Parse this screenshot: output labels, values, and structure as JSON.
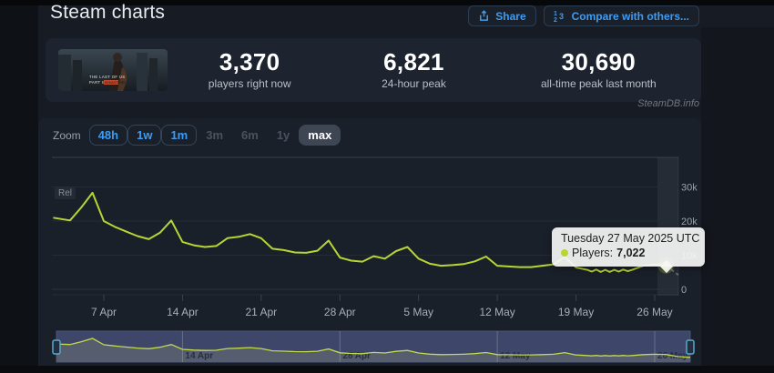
{
  "header": {
    "title": "Steam charts",
    "share_label": "Share",
    "compare_label": "Compare with others..."
  },
  "capsule": {
    "line1": "THE LAST OF US",
    "line2": "PART II",
    "badge": "REMASTERED"
  },
  "stats": {
    "items": [
      {
        "value": "3,370",
        "label": "players right now"
      },
      {
        "value": "6,821",
        "label": "24-hour peak"
      },
      {
        "value": "30,690",
        "label": "all-time peak last month"
      }
    ]
  },
  "watermark": "SteamDB.info",
  "toolbar": {
    "zoom_label": "Zoom",
    "buttons": [
      {
        "label": "48h",
        "state": "active"
      },
      {
        "label": "1w",
        "state": "active"
      },
      {
        "label": "1m",
        "state": "active"
      },
      {
        "label": "3m",
        "state": "disabled"
      },
      {
        "label": "6m",
        "state": "disabled"
      },
      {
        "label": "1y",
        "state": "disabled"
      },
      {
        "label": "max",
        "state": "selected"
      }
    ]
  },
  "release_flag": "Rel",
  "tooltip": {
    "title": "Tuesday 27 May 2025 UTC",
    "series_label": "Players:",
    "value": "7,022"
  },
  "chart_data": {
    "type": "line",
    "series_name": "Players",
    "day_zero": "3 Apr 2025",
    "points": [
      [
        -0.5,
        21000
      ],
      [
        1,
        20200
      ],
      [
        2,
        24000
      ],
      [
        3,
        28300
      ],
      [
        4,
        20000
      ],
      [
        5,
        18300
      ],
      [
        6,
        16900
      ],
      [
        7,
        15600
      ],
      [
        8,
        14700
      ],
      [
        9,
        16600
      ],
      [
        10,
        20200
      ],
      [
        11,
        13900
      ],
      [
        12,
        12900
      ],
      [
        13,
        12400
      ],
      [
        14,
        12700
      ],
      [
        15,
        15000
      ],
      [
        16,
        15400
      ],
      [
        17,
        16200
      ],
      [
        18,
        15000
      ],
      [
        19,
        11900
      ],
      [
        20,
        11500
      ],
      [
        21,
        10800
      ],
      [
        22,
        10700
      ],
      [
        23,
        11300
      ],
      [
        24,
        14300
      ],
      [
        25,
        9300
      ],
      [
        26,
        8400
      ],
      [
        27,
        8100
      ],
      [
        28,
        9700
      ],
      [
        29,
        9000
      ],
      [
        30,
        11200
      ],
      [
        31,
        12400
      ],
      [
        32,
        9000
      ],
      [
        33,
        7500
      ],
      [
        34,
        6900
      ],
      [
        35,
        7100
      ],
      [
        36,
        7400
      ],
      [
        37,
        8200
      ],
      [
        38,
        9600
      ],
      [
        39,
        6900
      ],
      [
        40,
        6700
      ],
      [
        41,
        6500
      ],
      [
        42,
        6500
      ],
      [
        43,
        6900
      ],
      [
        44,
        7300
      ],
      [
        45,
        9500
      ],
      [
        46,
        6400
      ],
      [
        47,
        5700
      ],
      [
        47.4,
        5200
      ],
      [
        47.8,
        5800
      ],
      [
        48.2,
        5100
      ],
      [
        48.6,
        5700
      ],
      [
        49,
        5100
      ],
      [
        49.4,
        5700
      ],
      [
        49.8,
        5200
      ],
      [
        50.2,
        5800
      ],
      [
        50.6,
        5300
      ],
      [
        51,
        5700
      ],
      [
        52,
        6900
      ],
      [
        53,
        7300
      ],
      [
        54,
        7022
      ],
      [
        55.1,
        4200
      ]
    ],
    "partial_last_segment": true,
    "selected_point": {
      "date": "Tuesday 27 May 2025 UTC",
      "players": 7022,
      "day": 54
    },
    "x_ticks": {
      "days": [
        4,
        11,
        18,
        25,
        32,
        39,
        46,
        53
      ],
      "labels": [
        "7 Apr",
        "14 Apr",
        "21 Apr",
        "28 Apr",
        "5 May",
        "12 May",
        "19 May",
        "26 May"
      ]
    },
    "y_ticks": [
      {
        "v": 0,
        "label": "0"
      },
      {
        "v": 10000,
        "label": "10k"
      },
      {
        "v": 20000,
        "label": "20k"
      },
      {
        "v": 30000,
        "label": "30k"
      }
    ],
    "ylim": [
      0,
      38500
    ],
    "grid": true,
    "navigator": {
      "label_days": [
        11,
        25,
        39,
        53
      ],
      "labels": [
        "14 Apr",
        "28 Apr",
        "12 May",
        "26 May"
      ]
    },
    "colors": {
      "line": "#b9d533",
      "marker": "#cde23c",
      "partial_segment": "#70777e",
      "nav_mask": "#3e4769",
      "nav_area": "#555d6e",
      "nav_line": "#c3d94f",
      "handle_border": "#57a9cf",
      "highlight_band": "rgba(255,255,255,0.055)"
    }
  }
}
